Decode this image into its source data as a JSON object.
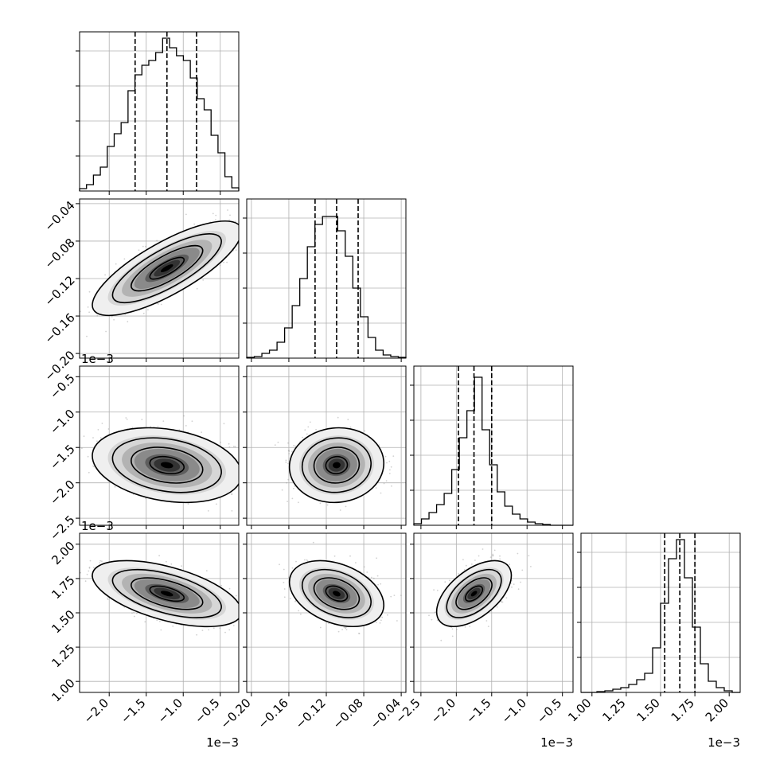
{
  "chart_data": {
    "type": "corner",
    "n_params": 4,
    "quantile_lines": "16/50/84",
    "grid": true,
    "params": [
      {
        "range": [
          -2.4,
          -0.25
        ],
        "ticks": [
          -2.0,
          -1.5,
          -1.0,
          -0.5
        ],
        "tick_labels": [
          "−2.0",
          "−1.5",
          "−1.0",
          "−0.5"
        ],
        "offset_label": "1e−3",
        "quantiles": [
          -1.65,
          -1.22,
          -0.82
        ],
        "hist_bins": [
          0.015,
          0.04,
          0.1,
          0.15,
          0.28,
          0.36,
          0.43,
          0.63,
          0.73,
          0.79,
          0.82,
          0.87,
          0.96,
          0.9,
          0.85,
          0.82,
          0.71,
          0.58,
          0.51,
          0.35,
          0.24,
          0.09,
          0.02
        ]
      },
      {
        "range": [
          -0.205,
          -0.035
        ],
        "ticks": [
          -0.2,
          -0.16,
          -0.12,
          -0.08,
          -0.04
        ],
        "tick_labels": [
          "−0.20",
          "−0.16",
          "−0.12",
          "−0.08",
          "−0.04"
        ],
        "offset_label": "",
        "quantiles": [
          -0.132,
          -0.109,
          -0.086
        ],
        "hist_bins": [
          0.005,
          0.01,
          0.03,
          0.05,
          0.1,
          0.19,
          0.33,
          0.5,
          0.7,
          0.84,
          0.89,
          0.89,
          0.8,
          0.64,
          0.44,
          0.26,
          0.13,
          0.05,
          0.02,
          0.01,
          0.005
        ]
      },
      {
        "range": [
          -2.6,
          -0.35
        ],
        "ticks": [
          -2.5,
          -2.0,
          -1.5,
          -1.0,
          -0.5
        ],
        "tick_labels": [
          "−2.5",
          "−2.0",
          "−1.5",
          "−1.0",
          "−0.5"
        ],
        "offset_label": "1e−3",
        "quantiles": [
          -1.97,
          -1.75,
          -1.5
        ],
        "hist_bins": [
          0.01,
          0.04,
          0.08,
          0.13,
          0.2,
          0.35,
          0.55,
          0.72,
          0.93,
          0.6,
          0.38,
          0.21,
          0.12,
          0.07,
          0.04,
          0.02,
          0.01,
          0.005,
          0.0,
          0.0,
          0.0
        ]
      },
      {
        "range": [
          0.92,
          2.08
        ],
        "ticks": [
          1.0,
          1.25,
          1.5,
          1.75,
          2.0
        ],
        "tick_labels": [
          "1.00",
          "1.25",
          "1.50",
          "1.75",
          "2.00"
        ],
        "offset_label": "1e−3",
        "quantiles": [
          1.53,
          1.64,
          1.75
        ],
        "hist_bins": [
          0.0,
          0.0,
          0.005,
          0.01,
          0.02,
          0.03,
          0.05,
          0.08,
          0.12,
          0.28,
          0.56,
          0.84,
          0.96,
          0.72,
          0.41,
          0.18,
          0.07,
          0.03,
          0.01,
          0.0
        ]
      }
    ],
    "panels_2d": [
      {
        "x": 0,
        "y": 1,
        "center": [
          -1.22,
          -0.109
        ],
        "sd": [
          0.42,
          0.021
        ],
        "corr": 0.78
      },
      {
        "x": 0,
        "y": 2,
        "center": [
          -1.22,
          -1.75
        ],
        "sd": [
          0.42,
          0.22
        ],
        "corr": -0.25
      },
      {
        "x": 1,
        "y": 2,
        "center": [
          -0.109,
          -1.75
        ],
        "sd": [
          0.021,
          0.22
        ],
        "corr": 0.05
      },
      {
        "x": 0,
        "y": 3,
        "center": [
          -1.22,
          1.64
        ],
        "sd": [
          0.42,
          0.1
        ],
        "corr": -0.55
      },
      {
        "x": 1,
        "y": 3,
        "center": [
          -0.109,
          1.64
        ],
        "sd": [
          0.021,
          0.1
        ],
        "corr": -0.35
      },
      {
        "x": 2,
        "y": 3,
        "center": [
          -1.75,
          1.64
        ],
        "sd": [
          0.22,
          0.1
        ],
        "corr": 0.55
      }
    ]
  }
}
